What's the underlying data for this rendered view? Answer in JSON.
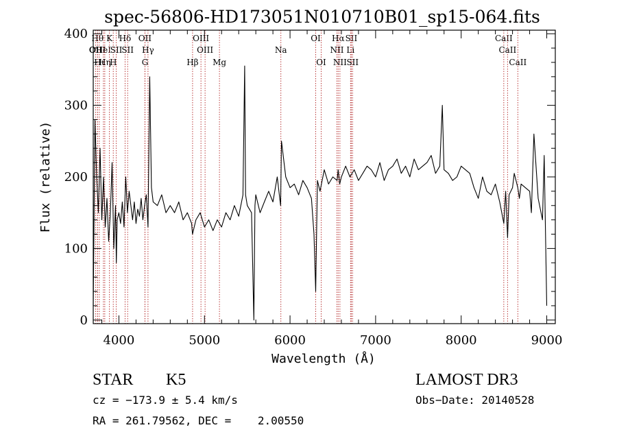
{
  "chart_data": {
    "type": "line",
    "title": "spec-56806-HD173051N010710B01_sp15-064.fits",
    "xlabel": "Wavelength (Å)",
    "ylabel": "Flux (relative)",
    "xlim": [
      3700,
      9100
    ],
    "ylim": [
      -5,
      405
    ],
    "x_ticks": [
      4000,
      5000,
      6000,
      7000,
      8000,
      9000
    ],
    "y_ticks": [
      0,
      100,
      200,
      300,
      400
    ],
    "grid": false,
    "series": [
      {
        "name": "flux",
        "x": [
          3700,
          3720,
          3740,
          3760,
          3780,
          3800,
          3820,
          3840,
          3860,
          3880,
          3900,
          3920,
          3940,
          3960,
          3970,
          3980,
          4000,
          4020,
          4040,
          4060,
          4080,
          4100,
          4120,
          4140,
          4160,
          4180,
          4200,
          4220,
          4240,
          4260,
          4280,
          4300,
          4320,
          4340,
          4360,
          4380,
          4400,
          4450,
          4500,
          4550,
          4600,
          4650,
          4700,
          4750,
          4800,
          4850,
          4860,
          4900,
          4950,
          5000,
          5050,
          5100,
          5150,
          5200,
          5250,
          5300,
          5350,
          5400,
          5450,
          5470,
          5480,
          5500,
          5550,
          5577,
          5590,
          5600,
          5650,
          5700,
          5750,
          5800,
          5850,
          5890,
          5900,
          5950,
          6000,
          6050,
          6100,
          6150,
          6200,
          6250,
          6280,
          6300,
          6320,
          6350,
          6400,
          6450,
          6500,
          6550,
          6563,
          6580,
          6600,
          6650,
          6700,
          6750,
          6800,
          6850,
          6900,
          6950,
          7000,
          7050,
          7100,
          7150,
          7200,
          7250,
          7300,
          7350,
          7400,
          7450,
          7500,
          7550,
          7600,
          7650,
          7700,
          7750,
          7780,
          7800,
          7850,
          7900,
          7950,
          8000,
          8050,
          8100,
          8150,
          8200,
          8250,
          8300,
          8350,
          8400,
          8450,
          8498,
          8520,
          8542,
          8560,
          8600,
          8620,
          8662,
          8680,
          8700,
          8750,
          8800,
          8820,
          8850,
          8900,
          8950,
          8970,
          9000
        ],
        "y": [
          20,
          280,
          200,
          150,
          240,
          140,
          200,
          130,
          170,
          110,
          150,
          220,
          100,
          160,
          80,
          140,
          150,
          135,
          165,
          130,
          200,
          150,
          180,
          160,
          140,
          165,
          135,
          155,
          145,
          170,
          140,
          160,
          175,
          130,
          340,
          185,
          165,
          160,
          175,
          150,
          160,
          150,
          165,
          140,
          150,
          135,
          120,
          140,
          150,
          130,
          140,
          125,
          140,
          130,
          150,
          140,
          160,
          145,
          175,
          355,
          175,
          160,
          150,
          0,
          160,
          175,
          150,
          165,
          180,
          165,
          200,
          160,
          250,
          200,
          185,
          190,
          175,
          195,
          185,
          170,
          120,
          40,
          195,
          180,
          210,
          190,
          200,
          195,
          210,
          190,
          200,
          215,
          200,
          210,
          195,
          205,
          215,
          210,
          200,
          220,
          195,
          210,
          215,
          225,
          205,
          215,
          200,
          225,
          210,
          215,
          220,
          230,
          205,
          215,
          300,
          210,
          205,
          195,
          200,
          215,
          210,
          205,
          185,
          170,
          200,
          180,
          175,
          190,
          165,
          135,
          180,
          115,
          175,
          185,
          205,
          185,
          170,
          190,
          185,
          180,
          150,
          260,
          170,
          140,
          230,
          20
        ]
      }
    ],
    "line_markers": [
      {
        "x": 3727,
        "row": 1,
        "label": "OII"
      },
      {
        "x": 3750,
        "row": 0,
        "label": "Hθ"
      },
      {
        "x": 3750,
        "row": 1,
        "label": "OIII"
      },
      {
        "x": 3771,
        "row": 2,
        "label": "Hι"
      },
      {
        "x": 3819,
        "row": 1,
        "label": "HeI"
      },
      {
        "x": 3835,
        "row": 2,
        "label": "Hη"
      },
      {
        "x": 3889,
        "row": 0,
        "label": "K"
      },
      {
        "x": 3934,
        "row": 2,
        "label": "H"
      },
      {
        "x": 3969,
        "row": 1,
        "label": "SII"
      },
      {
        "x": 4072,
        "row": 0,
        "label": "Hδ"
      },
      {
        "x": 4102,
        "row": 1,
        "label": "SII"
      },
      {
        "x": 4304,
        "row": 0,
        "label": "OII"
      },
      {
        "x": 4305,
        "row": 2,
        "label": "G"
      },
      {
        "x": 4340,
        "row": 1,
        "label": "Hγ"
      },
      {
        "x": 4861,
        "row": 2,
        "label": "Hβ"
      },
      {
        "x": 4959,
        "row": 0,
        "label": "OIII"
      },
      {
        "x": 5007,
        "row": 1,
        "label": "OIII"
      },
      {
        "x": 5175,
        "row": 2,
        "label": "Mg"
      },
      {
        "x": 5893,
        "row": 1,
        "label": "Na"
      },
      {
        "x": 6300,
        "row": 0,
        "label": "OI"
      },
      {
        "x": 6364,
        "row": 2,
        "label": "OI"
      },
      {
        "x": 6548,
        "row": 1,
        "label": "NII"
      },
      {
        "x": 6563,
        "row": 0,
        "label": "Hα"
      },
      {
        "x": 6583,
        "row": 2,
        "label": "NII"
      },
      {
        "x": 6707,
        "row": 1,
        "label": "Li"
      },
      {
        "x": 6716,
        "row": 0,
        "label": "SII"
      },
      {
        "x": 6731,
        "row": 2,
        "label": "SII"
      },
      {
        "x": 8498,
        "row": 0,
        "label": "CaII"
      },
      {
        "x": 8542,
        "row": 1,
        "label": "CaII"
      },
      {
        "x": 8662,
        "row": 2,
        "label": "CaII"
      }
    ]
  },
  "info": {
    "class_label": "STAR",
    "subclass": "K5",
    "survey": "LAMOST DR3",
    "cz": "cz = −173.9 ± 5.4 km/s",
    "obs_date": "Obs−Date: 20140528",
    "coords": "RA = 261.79562, DEC =    2.00550"
  },
  "colors": {
    "marker_line": "#b22222",
    "spectrum": "#000000"
  }
}
